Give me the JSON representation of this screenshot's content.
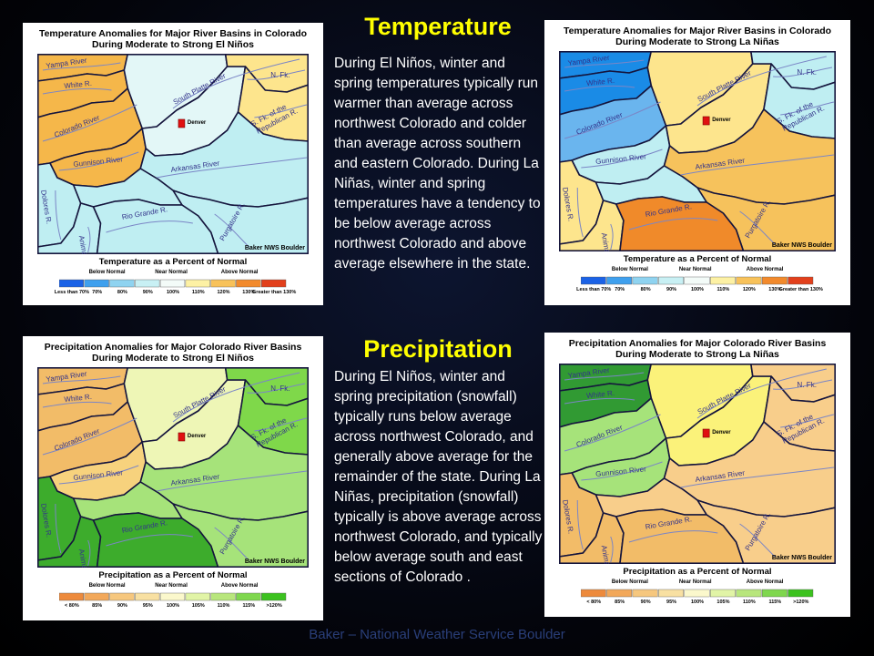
{
  "slide": {
    "temperature_heading": "Temperature",
    "temperature_text": "During El Niños, winter and spring temperatures typically run warmer than average across northwest Colorado and colder than average across southern and eastern Colorado. During La Niñas, winter and spring temperatures have a tendency to be below average  across northwest Colorado and above average elsewhere in the state.",
    "precipitation_heading": "Precipitation",
    "precipitation_text": "During El Niños, winter and spring  precipitation (snowfall) typically runs below average across northwest Colorado, and generally above average for the remainder of the state. During La Niñas, precipitation (snowfall) typically is above average across northwest Colorado, and typically below average south and east sections of Colorado .",
    "footer": "Baker – National Weather Service Boulder"
  },
  "labels": {
    "denver": "Denver",
    "credit": "Baker NWS Boulder",
    "rivers": {
      "yampa": "Yampa River",
      "white": "White R.",
      "colorado": "Colorado River",
      "south_platte": "South Platte River",
      "n_fk": "N. Fk.",
      "sfk": "S. Fk. of the",
      "republican": "Republican R.",
      "gunnison": "Gunnison River",
      "arkansas": "Arkansas River",
      "dolores": "Dolores R.",
      "animas": "Animas R.",
      "rio_grande": "Rio Grande R.",
      "purgatoire": "Purgatoire R."
    }
  },
  "legends": {
    "temperature": {
      "title": "Temperature as a Percent of Normal",
      "categories": [
        "Below Normal",
        "Near Normal",
        "Above Normal"
      ],
      "ticks": [
        "Less than 70%",
        "70%",
        "80%",
        "90%",
        "100%",
        "110%",
        "120%",
        "130%",
        "Greater than 130%"
      ]
    },
    "precipitation": {
      "title": "Precipitation as a Percent of Normal",
      "categories": [
        "Below Normal",
        "Near Normal",
        "Above Normal"
      ],
      "ticks": [
        "< 80%",
        "85%",
        "90%",
        "95%",
        "100%",
        "105%",
        "110%",
        "115%",
        ">120%"
      ]
    }
  },
  "map_colors": {
    "temp_warm": "#f5b74a",
    "temp_warm_light": "#fde58d",
    "temp_neutral": "#e3f7f7",
    "temp_cold": "#bfeef2",
    "temp_cold_dark": "#1a8be6",
    "temp_cold_mid": "#6ab5ee",
    "temp_hot": "#f08a2a",
    "temp_hot_light": "#f6c25c",
    "precip_dry": "#f2bc68",
    "precip_dry_mid": "#f7d27d",
    "precip_near": "#eef6b6",
    "precip_wet": "#a6e37a",
    "precip_wet_mid": "#7fd84a",
    "precip_wettest": "#3dac2c",
    "precip_wet_dark": "#319a33",
    "precip_yellow": "#fbf27a",
    "precip_peach": "#f8ce8b"
  },
  "maps": [
    {
      "id": "temp-el-nino",
      "title_line1": "Temperature Anomalies for Major River Basins in Colorado",
      "title_line2": "During Moderate to Strong El Niños",
      "fills": {
        "yampa": "temp_warm",
        "white": "temp_warm",
        "colorado": "temp_warm",
        "gunnison": "temp_warm",
        "south_platte_upper": "temp_neutral",
        "south_platte_lower": "temp_neutral",
        "nfk": "temp_warm_light",
        "republican": "temp_warm_light",
        "arkansas_upper": "temp_cold",
        "arkansas_lower": "temp_cold",
        "dolores": "temp_cold",
        "rio_grande": "temp_cold",
        "animas": "temp_cold",
        "mid": "temp_cold"
      },
      "legend": "temperature"
    },
    {
      "id": "temp-la-nina",
      "title_line1": "Temperature Anomalies for Major River Basins in Colorado",
      "title_line2": "During Moderate to Strong La Niñas",
      "fills": {
        "yampa": "temp_cold_dark",
        "white": "temp_cold_dark",
        "colorado": "temp_cold_mid",
        "gunnison": "temp_cold",
        "south_platte_upper": "temp_warm_light",
        "south_platte_lower": "temp_warm_light",
        "nfk": "temp_cold",
        "republican": "temp_cold",
        "arkansas_upper": "temp_hot_light",
        "arkansas_lower": "temp_hot_light",
        "dolores": "temp_warm_light",
        "rio_grande": "temp_hot",
        "animas": "temp_warm_light",
        "mid": "temp_cold"
      },
      "legend": "temperature"
    },
    {
      "id": "precip-el-nino",
      "title_line1": "Precipitation Anomalies for Major Colorado River Basins",
      "title_line2": "During Moderate to Strong El Niños",
      "fills": {
        "yampa": "precip_dry",
        "white": "precip_dry",
        "colorado": "precip_dry",
        "gunnison": "precip_dry_mid",
        "south_platte_upper": "precip_near",
        "south_platte_lower": "precip_near",
        "nfk": "precip_wet_mid",
        "republican": "precip_wet_mid",
        "arkansas_upper": "precip_wet",
        "arkansas_lower": "precip_wet",
        "dolores": "precip_wettest",
        "rio_grande": "precip_wettest",
        "animas": "precip_wettest",
        "mid": "precip_wet"
      },
      "legend": "precipitation"
    },
    {
      "id": "precip-la-nina",
      "title_line1": "Precipitation Anomalies for Major Colorado River Basins",
      "title_line2": "During Moderate to Strong  La Niñas",
      "fills": {
        "yampa": "precip_wet_dark",
        "white": "precip_wet_dark",
        "colorado": "precip_wet",
        "gunnison": "precip_wet",
        "south_platte_upper": "precip_yellow",
        "south_platte_lower": "precip_yellow",
        "nfk": "precip_peach",
        "republican": "precip_peach",
        "arkansas_upper": "precip_peach",
        "arkansas_lower": "precip_peach",
        "dolores": "precip_dry",
        "rio_grande": "precip_dry",
        "animas": "precip_dry",
        "mid": "precip_peach"
      },
      "legend": "precipitation"
    }
  ]
}
